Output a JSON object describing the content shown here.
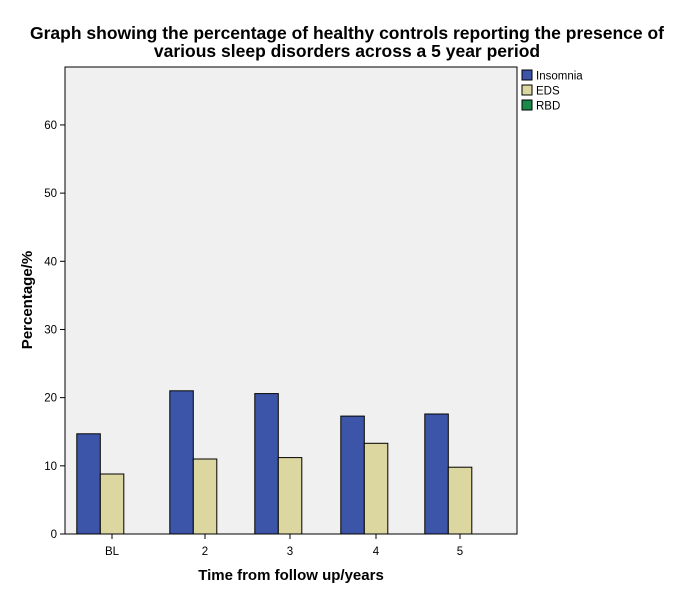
{
  "chart_data": {
    "type": "bar",
    "title_lines": [
      "Graph showing the percentage of healthy controls reporting the presence of",
      "various sleep disorders across a 5 year period"
    ],
    "xlabel": "Time from follow up/years",
    "ylabel": "Percentage/%",
    "categories": [
      "BL",
      "2",
      "3",
      "4",
      "5"
    ],
    "series": [
      {
        "name": "Insomnia",
        "color": "#3c55a8",
        "values": [
          14.7,
          21.0,
          20.6,
          17.3,
          17.6
        ]
      },
      {
        "name": "EDS",
        "color": "#dcd7a0",
        "values": [
          8.8,
          11.0,
          11.2,
          13.3,
          9.8
        ]
      },
      {
        "name": "RBD",
        "color": "#1a8a4a",
        "values": [
          0,
          0,
          0,
          0,
          0
        ]
      }
    ],
    "ylim": [
      0,
      68.5
    ],
    "yticks": [
      0,
      10,
      20,
      30,
      40,
      50,
      60
    ],
    "legend_position": "top-right",
    "grid": false
  }
}
